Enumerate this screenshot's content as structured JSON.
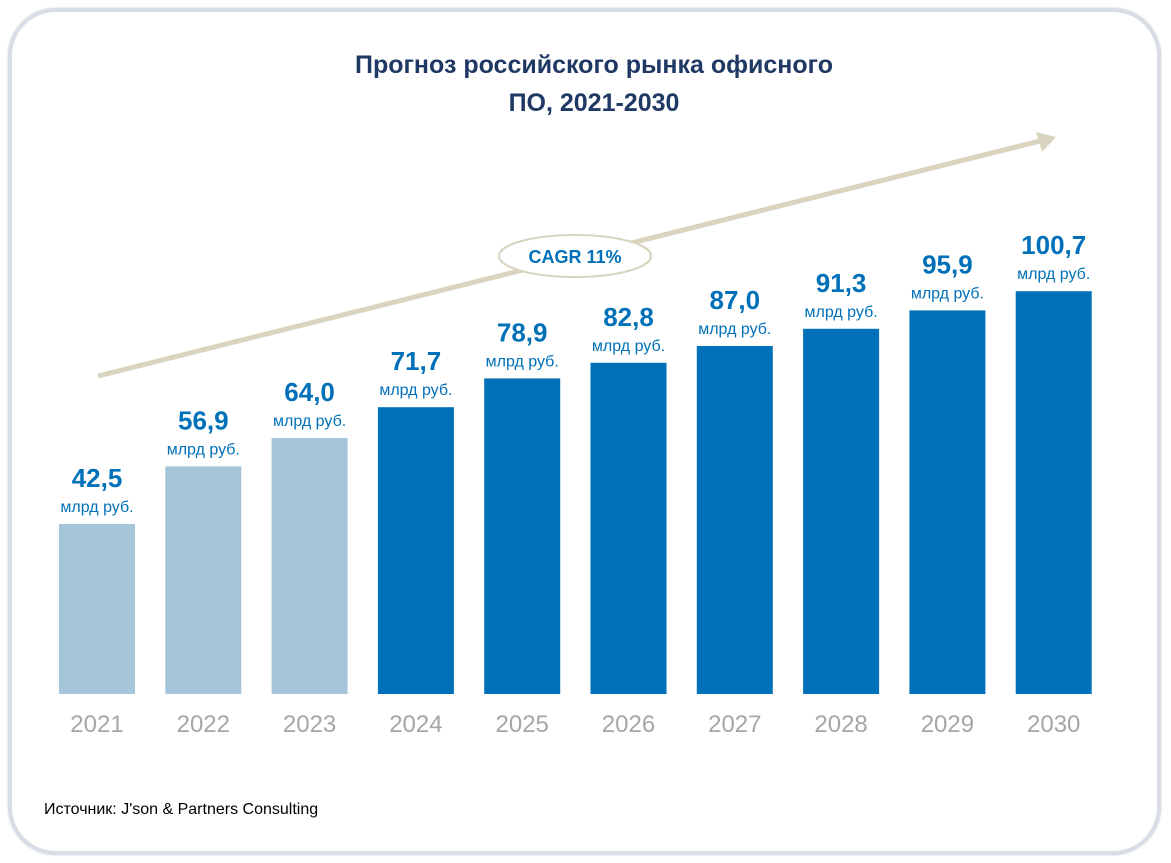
{
  "chart_data": {
    "type": "bar",
    "title_lines": [
      "Прогноз российского рынка офисного",
      "ПО, 2021-2030"
    ],
    "categories": [
      "2021",
      "2022",
      "2023",
      "2024",
      "2025",
      "2026",
      "2027",
      "2028",
      "2029",
      "2030"
    ],
    "values": [
      42.5,
      56.9,
      64.0,
      71.7,
      78.9,
      82.8,
      87.0,
      91.3,
      95.9,
      100.7
    ],
    "value_labels": [
      "42,5",
      "56,9",
      "64,0",
      "71,7",
      "78,9",
      "82,8",
      "87,0",
      "91,3",
      "95,9",
      "100,7"
    ],
    "unit_label": "млрд руб.",
    "ylim": [
      0,
      112
    ],
    "colors": {
      "actual": "#a5c5d9",
      "forecast": "#0070b8",
      "title": "#1f3864",
      "label": "#0070b8",
      "tick": "#a6a6a6",
      "arrow": "#d8d4bf"
    },
    "highlight_actual_years": [
      "2021",
      "2022",
      "2023"
    ],
    "annotation": {
      "text": "CAGR 11%",
      "kind": "trend-arrow"
    },
    "grid": false,
    "legend": "none"
  },
  "source": "Источник: J'son & Partners Consulting"
}
